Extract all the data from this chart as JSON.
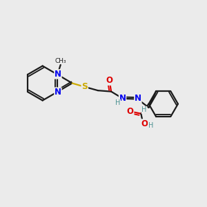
{
  "bg_color": "#ebebeb",
  "bond_color": "#1a1a1a",
  "bond_width": 1.6,
  "atom_colors": {
    "N": "#0000ee",
    "O": "#dd0000",
    "S": "#ccaa00",
    "H": "#4a9090",
    "C": "#1a1a1a"
  },
  "fs": 8.5
}
